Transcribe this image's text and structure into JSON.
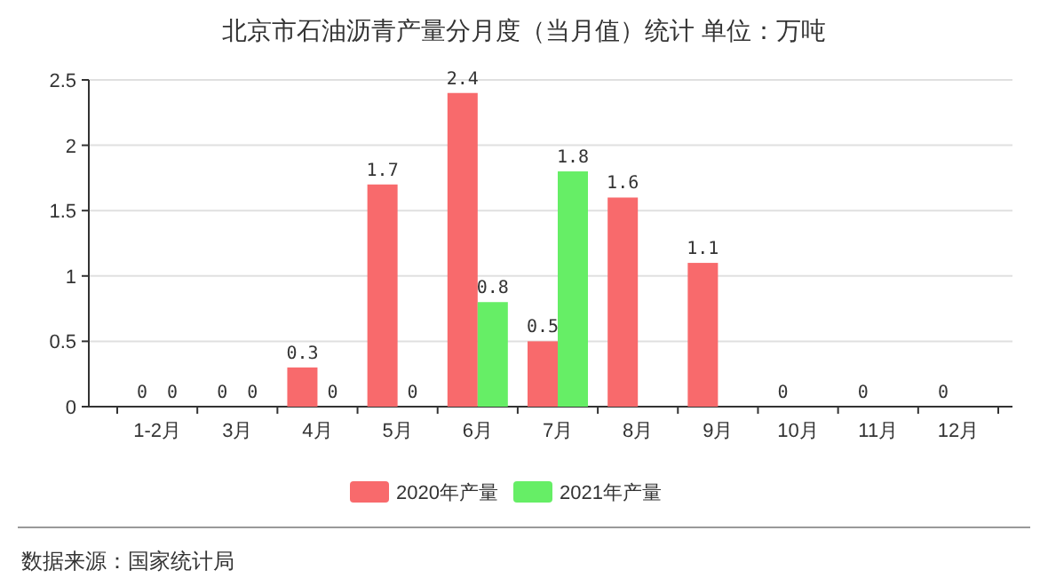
{
  "chart_data": {
    "type": "bar",
    "title": "北京市石油沥青产量分月度（当月值）统计  单位：万吨",
    "categories": [
      "1-2月",
      "3月",
      "4月",
      "5月",
      "6月",
      "7月",
      "8月",
      "9月",
      "10月",
      "11月",
      "12月"
    ],
    "series": [
      {
        "name": "2020年产量",
        "color": "#f86a6c",
        "values": [
          0,
          0,
          0.3,
          1.7,
          2.4,
          0.5,
          1.6,
          1.1,
          0,
          0,
          0
        ]
      },
      {
        "name": "2021年产量",
        "color": "#66ee66",
        "values": [
          0,
          0,
          0,
          0,
          0.8,
          1.8,
          null,
          null,
          null,
          null,
          null
        ]
      }
    ],
    "ylim": [
      0,
      2.5
    ],
    "yticks": [
      0,
      {
        "value": 0.5,
        "label": "0.5"
      },
      1,
      {
        "value": 1.5,
        "label": "1.5"
      },
      2,
      {
        "value": 2.5,
        "label": "2.5"
      }
    ],
    "grid": "y",
    "legend": "bottom",
    "data_labels": true,
    "annotations": [
      "数据来源：国家统计局"
    ]
  }
}
